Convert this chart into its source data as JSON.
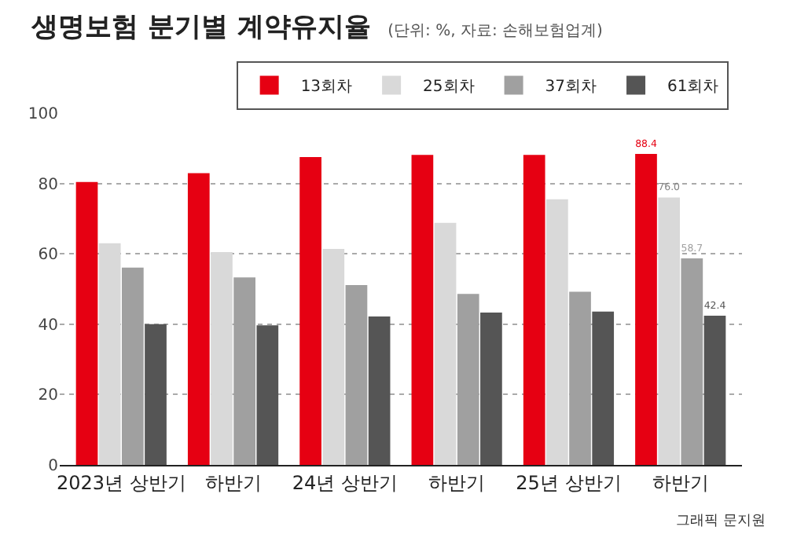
{
  "chart_data": {
    "type": "bar",
    "title": "생명보험 분기별 계약유지율",
    "subtitle": "(단위: %, 자료: 손해보험업계)",
    "categories": [
      "2023년 상반기",
      "하반기",
      "24년 상반기",
      "하반기",
      "25년 상반기",
      "하반기"
    ],
    "series": [
      {
        "name": "13회차",
        "color": "#e60012",
        "values": [
          80.4,
          82.9,
          87.5,
          88.1,
          88.1,
          88.4
        ],
        "value_labels": [
          null,
          null,
          null,
          null,
          null,
          "88.4"
        ]
      },
      {
        "name": "25회차",
        "color": "#d9d9d9",
        "values": [
          63.0,
          60.5,
          61.4,
          68.8,
          75.5,
          76.0
        ],
        "value_labels": [
          null,
          null,
          null,
          null,
          null,
          "76.0"
        ]
      },
      {
        "name": "37회차",
        "color": "#a0a0a0",
        "values": [
          56.1,
          53.3,
          51.1,
          48.6,
          49.2,
          58.7
        ],
        "value_labels": [
          null,
          null,
          null,
          null,
          null,
          "58.7"
        ]
      },
      {
        "name": "61회차",
        "color": "#555555",
        "values": [
          40.0,
          39.7,
          42.2,
          43.3,
          43.6,
          42.4
        ],
        "value_labels": [
          null,
          null,
          null,
          null,
          null,
          "42.4"
        ]
      }
    ],
    "ylim": [
      0,
      100
    ],
    "yticks": [
      0,
      20,
      40,
      60,
      80,
      100
    ],
    "grid": "y",
    "legend": "top right",
    "annotations": [
      "그래픽 문지원"
    ]
  }
}
